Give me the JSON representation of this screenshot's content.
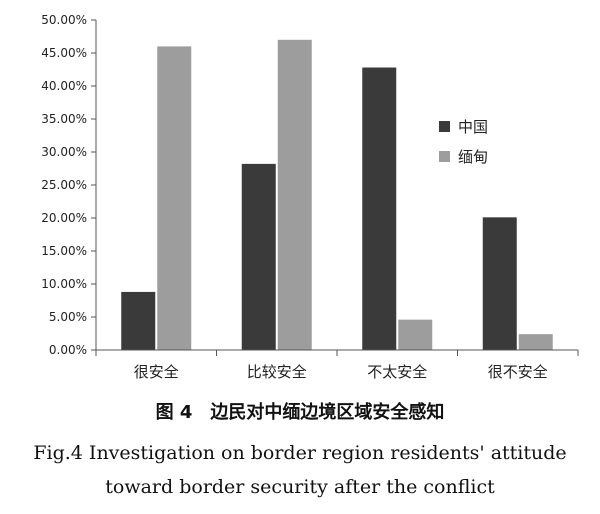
{
  "chart_data": {
    "type": "bar",
    "categories": [
      "很安全",
      "比较安全",
      "不太安全",
      "很不安全"
    ],
    "series": [
      {
        "name": "中国",
        "values": [
          8.8,
          28.2,
          42.8,
          20.1
        ],
        "color": "#3a3a3a"
      },
      {
        "name": "缅甸",
        "values": [
          46.0,
          47.0,
          4.6,
          2.4
        ],
        "color": "#9d9d9d"
      }
    ],
    "ylim": [
      0,
      50
    ],
    "yticks": [
      "0.00%",
      "5.00%",
      "10.00%",
      "15.00%",
      "20.00%",
      "25.00%",
      "30.00%",
      "35.00%",
      "40.00%",
      "45.00%",
      "50.00%"
    ],
    "legend_position": "right",
    "grid": false
  },
  "caption": {
    "chinese": "图 4　边民对中缅边境区域安全感知",
    "english_line1": "Fig.4 Investigation on border region residents' attitude",
    "english_line2": "toward border security after the conflict"
  }
}
